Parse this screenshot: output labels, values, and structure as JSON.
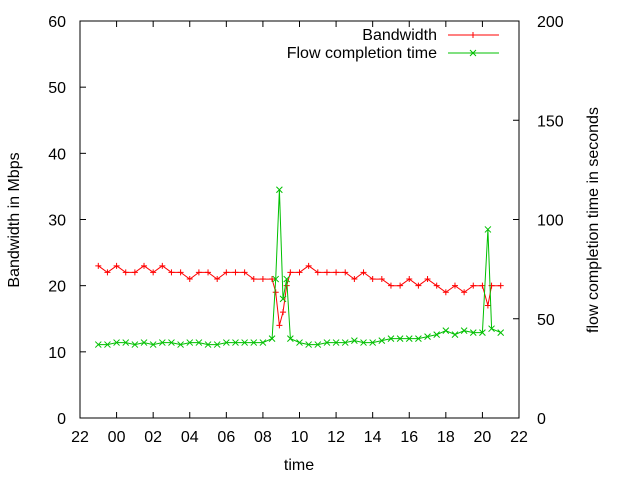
{
  "chart_data": {
    "type": "line",
    "title": "",
    "xlabel": "time",
    "ylabel": "Bandwidth in Mbps",
    "y2label": "flow completion time in seconds",
    "xlim": [
      22,
      46
    ],
    "ylim": [
      0,
      60
    ],
    "y2lim": [
      0,
      200
    ],
    "x_ticks": [
      22,
      24,
      26,
      28,
      30,
      32,
      34,
      36,
      38,
      40,
      42,
      44,
      46
    ],
    "x_tick_labels": [
      "22",
      "00",
      "02",
      "04",
      "06",
      "08",
      "10",
      "12",
      "14",
      "16",
      "18",
      "20",
      "22"
    ],
    "y_ticks": [
      0,
      10,
      20,
      30,
      40,
      50,
      60
    ],
    "y_tick_labels": [
      "0",
      "10",
      "20",
      "30",
      "40",
      "50",
      "60"
    ],
    "y2_ticks": [
      0,
      50,
      100,
      150,
      200
    ],
    "y2_tick_labels": [
      "0",
      "50",
      "100",
      "150",
      "200"
    ],
    "grid": false,
    "legend_position": "top-right",
    "series": [
      {
        "name": "Bandwidth",
        "axis": "left",
        "color": "#ff0000",
        "marker": "plus",
        "x": [
          23.0,
          23.5,
          24.0,
          24.5,
          25.0,
          25.5,
          26.0,
          26.5,
          27.0,
          27.5,
          28.0,
          28.5,
          29.0,
          29.5,
          30.0,
          30.5,
          31.0,
          31.5,
          32.0,
          32.5,
          32.7,
          32.9,
          33.1,
          33.3,
          33.5,
          34.0,
          34.5,
          35.0,
          35.5,
          36.0,
          36.5,
          37.0,
          37.5,
          38.0,
          38.5,
          39.0,
          39.5,
          40.0,
          40.5,
          41.0,
          41.5,
          42.0,
          42.5,
          43.0,
          43.5,
          44.0,
          44.3,
          44.5,
          45.0
        ],
        "y": [
          23,
          22,
          23,
          22,
          22,
          23,
          22,
          23,
          22,
          22,
          21,
          22,
          22,
          21,
          22,
          22,
          22,
          21,
          21,
          21,
          19,
          14,
          16,
          20,
          22,
          22,
          23,
          22,
          22,
          22,
          22,
          21,
          22,
          21,
          21,
          20,
          20,
          21,
          20,
          21,
          20,
          19,
          20,
          19,
          20,
          20,
          17,
          20,
          20
        ]
      },
      {
        "name": "Flow completion time",
        "axis": "right",
        "color": "#00c000",
        "marker": "cross",
        "x": [
          23.0,
          23.5,
          24.0,
          24.5,
          25.0,
          25.5,
          26.0,
          26.5,
          27.0,
          27.5,
          28.0,
          28.5,
          29.0,
          29.5,
          30.0,
          30.5,
          31.0,
          31.5,
          32.0,
          32.5,
          32.7,
          32.9,
          33.1,
          33.3,
          33.5,
          34.0,
          34.5,
          35.0,
          35.5,
          36.0,
          36.5,
          37.0,
          37.5,
          38.0,
          38.5,
          39.0,
          39.5,
          40.0,
          40.5,
          41.0,
          41.5,
          42.0,
          42.5,
          43.0,
          43.5,
          44.0,
          44.3,
          44.5,
          45.0
        ],
        "y": [
          37,
          37,
          38,
          38,
          37,
          38,
          37,
          38,
          38,
          37,
          38,
          38,
          37,
          37,
          38,
          38,
          38,
          38,
          38,
          40,
          70,
          115,
          60,
          70,
          40,
          38,
          37,
          37,
          38,
          38,
          38,
          39,
          38,
          38,
          39,
          40,
          40,
          40,
          40,
          41,
          42,
          44,
          42,
          44,
          43,
          43,
          95,
          45,
          43
        ]
      }
    ]
  }
}
